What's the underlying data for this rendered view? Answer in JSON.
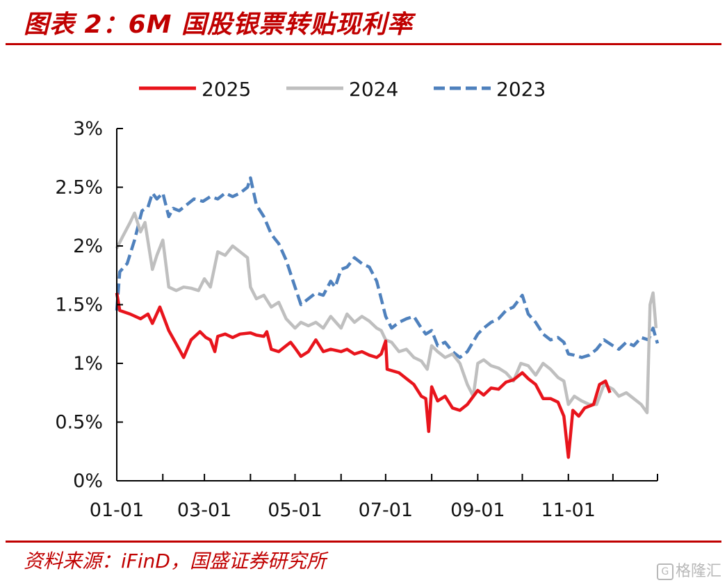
{
  "header": {
    "title": "图表 2：6M 国股银票转贴现利率"
  },
  "footer": {
    "source": "资料来源：iFinD，国盛证券研究所",
    "watermark": "格隆汇",
    "watermark_icon": "G"
  },
  "colors": {
    "title": "#c00000",
    "s2025": "#e8141c",
    "s2024": "#bfbfbf",
    "s2023": "#4f81bd"
  },
  "chart_data": {
    "type": "line",
    "title": "6M 国股银票转贴现利率",
    "x_ticks": [
      "01-01",
      "03-01",
      "05-01",
      "07-01",
      "09-01",
      "11-01"
    ],
    "y_ticks": [
      "0%",
      "0.5%",
      "1%",
      "1.5%",
      "2%",
      "2.5%",
      "3%"
    ],
    "ylim": [
      0,
      3
    ],
    "y_unit": "%",
    "legend_position": "top",
    "grid": false,
    "series": [
      {
        "name": "2025",
        "style": "solid",
        "points": [
          [
            "01-01",
            1.6
          ],
          [
            "01-03",
            1.45
          ],
          [
            "01-10",
            1.42
          ],
          [
            "01-17",
            1.38
          ],
          [
            "01-22",
            1.42
          ],
          [
            "01-25",
            1.34
          ],
          [
            "01-30",
            1.48
          ],
          [
            "02-05",
            1.28
          ],
          [
            "02-12",
            1.12
          ],
          [
            "02-15",
            1.05
          ],
          [
            "02-20",
            1.2
          ],
          [
            "02-26",
            1.27
          ],
          [
            "03-02",
            1.22
          ],
          [
            "03-05",
            1.2
          ],
          [
            "03-08",
            1.1
          ],
          [
            "03-10",
            1.23
          ],
          [
            "03-15",
            1.25
          ],
          [
            "03-20",
            1.22
          ],
          [
            "03-25",
            1.25
          ],
          [
            "04-01",
            1.26
          ],
          [
            "04-05",
            1.24
          ],
          [
            "04-10",
            1.23
          ],
          [
            "04-12",
            1.27
          ],
          [
            "04-15",
            1.12
          ],
          [
            "04-20",
            1.1
          ],
          [
            "04-25",
            1.15
          ],
          [
            "04-28",
            1.18
          ],
          [
            "05-01",
            1.13
          ],
          [
            "05-05",
            1.06
          ],
          [
            "05-10",
            1.1
          ],
          [
            "05-15",
            1.2
          ],
          [
            "05-20",
            1.1
          ],
          [
            "05-25",
            1.12
          ],
          [
            "06-01",
            1.1
          ],
          [
            "06-05",
            1.12
          ],
          [
            "06-10",
            1.08
          ],
          [
            "06-15",
            1.1
          ],
          [
            "06-20",
            1.07
          ],
          [
            "06-25",
            1.05
          ],
          [
            "06-28",
            1.08
          ],
          [
            "07-01",
            1.19
          ],
          [
            "07-02",
            0.95
          ],
          [
            "07-10",
            0.92
          ],
          [
            "07-15",
            0.87
          ],
          [
            "07-20",
            0.82
          ],
          [
            "07-25",
            0.72
          ],
          [
            "07-28",
            0.7
          ],
          [
            "07-30",
            0.42
          ],
          [
            "08-01",
            0.8
          ],
          [
            "08-05",
            0.68
          ],
          [
            "08-10",
            0.72
          ],
          [
            "08-15",
            0.62
          ],
          [
            "08-20",
            0.6
          ],
          [
            "08-25",
            0.65
          ],
          [
            "09-01",
            0.77
          ],
          [
            "09-05",
            0.73
          ],
          [
            "09-10",
            0.79
          ],
          [
            "09-15",
            0.78
          ],
          [
            "09-20",
            0.84
          ],
          [
            "09-25",
            0.86
          ],
          [
            "10-01",
            0.92
          ],
          [
            "10-05",
            0.87
          ],
          [
            "10-10",
            0.82
          ],
          [
            "10-15",
            0.7
          ],
          [
            "10-20",
            0.7
          ],
          [
            "10-25",
            0.67
          ],
          [
            "10-29",
            0.55
          ],
          [
            "11-01",
            0.2
          ],
          [
            "11-04",
            0.6
          ],
          [
            "11-08",
            0.55
          ],
          [
            "11-12",
            0.62
          ],
          [
            "11-18",
            0.65
          ],
          [
            "11-22",
            0.82
          ],
          [
            "11-26",
            0.85
          ],
          [
            "11-29",
            0.75
          ]
        ]
      },
      {
        "name": "2024",
        "style": "solid",
        "points": [
          [
            "01-01",
            1.98
          ],
          [
            "01-05",
            2.08
          ],
          [
            "01-10",
            2.2
          ],
          [
            "01-13",
            2.28
          ],
          [
            "01-17",
            2.12
          ],
          [
            "01-20",
            2.2
          ],
          [
            "01-25",
            1.8
          ],
          [
            "01-28",
            1.92
          ],
          [
            "02-01",
            2.05
          ],
          [
            "02-05",
            1.65
          ],
          [
            "02-10",
            1.62
          ],
          [
            "02-15",
            1.65
          ],
          [
            "02-20",
            1.64
          ],
          [
            "02-25",
            1.62
          ],
          [
            "03-01",
            1.72
          ],
          [
            "03-05",
            1.65
          ],
          [
            "03-10",
            1.95
          ],
          [
            "03-15",
            1.92
          ],
          [
            "03-20",
            2.0
          ],
          [
            "03-25",
            1.95
          ],
          [
            "03-30",
            1.9
          ],
          [
            "04-01",
            1.65
          ],
          [
            "04-05",
            1.55
          ],
          [
            "04-10",
            1.58
          ],
          [
            "04-15",
            1.48
          ],
          [
            "04-20",
            1.52
          ],
          [
            "04-25",
            1.38
          ],
          [
            "05-01",
            1.3
          ],
          [
            "05-05",
            1.35
          ],
          [
            "05-10",
            1.32
          ],
          [
            "05-15",
            1.35
          ],
          [
            "05-20",
            1.3
          ],
          [
            "05-25",
            1.4
          ],
          [
            "06-01",
            1.3
          ],
          [
            "06-05",
            1.42
          ],
          [
            "06-10",
            1.35
          ],
          [
            "06-15",
            1.4
          ],
          [
            "06-20",
            1.36
          ],
          [
            "06-25",
            1.3
          ],
          [
            "06-28",
            1.28
          ],
          [
            "07-01",
            1.2
          ],
          [
            "07-05",
            1.18
          ],
          [
            "07-10",
            1.1
          ],
          [
            "07-15",
            1.12
          ],
          [
            "07-20",
            1.05
          ],
          [
            "07-25",
            1.02
          ],
          [
            "07-29",
            0.95
          ],
          [
            "08-01",
            1.15
          ],
          [
            "08-05",
            1.1
          ],
          [
            "08-10",
            1.05
          ],
          [
            "08-15",
            1.08
          ],
          [
            "08-20",
            1.0
          ],
          [
            "08-25",
            0.82
          ],
          [
            "08-29",
            0.72
          ],
          [
            "09-01",
            1.0
          ],
          [
            "09-05",
            1.03
          ],
          [
            "09-10",
            0.98
          ],
          [
            "09-15",
            0.96
          ],
          [
            "09-20",
            0.92
          ],
          [
            "09-25",
            0.85
          ],
          [
            "09-30",
            1.0
          ],
          [
            "10-05",
            0.98
          ],
          [
            "10-10",
            0.9
          ],
          [
            "10-15",
            1.0
          ],
          [
            "10-20",
            0.95
          ],
          [
            "10-25",
            0.88
          ],
          [
            "10-29",
            0.85
          ],
          [
            "11-01",
            0.65
          ],
          [
            "11-05",
            0.72
          ],
          [
            "11-10",
            0.68
          ],
          [
            "11-15",
            0.65
          ],
          [
            "11-20",
            0.65
          ],
          [
            "11-25",
            0.82
          ],
          [
            "12-01",
            0.78
          ],
          [
            "12-05",
            0.72
          ],
          [
            "12-10",
            0.75
          ],
          [
            "12-15",
            0.7
          ],
          [
            "12-20",
            0.65
          ],
          [
            "12-24",
            0.58
          ],
          [
            "12-26",
            1.5
          ],
          [
            "12-28",
            1.6
          ],
          [
            "12-30",
            1.3
          ]
        ]
      },
      {
        "name": "2023",
        "style": "dashed",
        "points": [
          [
            "01-01",
            1.45
          ],
          [
            "01-03",
            1.78
          ],
          [
            "01-08",
            1.85
          ],
          [
            "01-13",
            2.05
          ],
          [
            "01-18",
            2.3
          ],
          [
            "01-22",
            2.33
          ],
          [
            "01-25",
            2.45
          ],
          [
            "01-28",
            2.4
          ],
          [
            "02-01",
            2.45
          ],
          [
            "02-05",
            2.25
          ],
          [
            "02-08",
            2.32
          ],
          [
            "02-12",
            2.3
          ],
          [
            "02-17",
            2.35
          ],
          [
            "02-22",
            2.4
          ],
          [
            "02-28",
            2.38
          ],
          [
            "03-05",
            2.42
          ],
          [
            "03-10",
            2.4
          ],
          [
            "03-15",
            2.45
          ],
          [
            "03-20",
            2.42
          ],
          [
            "03-25",
            2.45
          ],
          [
            "03-30",
            2.5
          ],
          [
            "04-01",
            2.58
          ],
          [
            "04-05",
            2.35
          ],
          [
            "04-10",
            2.25
          ],
          [
            "04-15",
            2.1
          ],
          [
            "04-20",
            2.02
          ],
          [
            "04-25",
            1.88
          ],
          [
            "05-01",
            1.65
          ],
          [
            "05-05",
            1.5
          ],
          [
            "05-10",
            1.55
          ],
          [
            "05-15",
            1.6
          ],
          [
            "05-20",
            1.58
          ],
          [
            "05-25",
            1.7
          ],
          [
            "05-28",
            1.65
          ],
          [
            "06-01",
            1.8
          ],
          [
            "06-05",
            1.82
          ],
          [
            "06-10",
            1.9
          ],
          [
            "06-15",
            1.85
          ],
          [
            "06-20",
            1.82
          ],
          [
            "06-25",
            1.7
          ],
          [
            "06-28",
            1.55
          ],
          [
            "07-01",
            1.4
          ],
          [
            "07-05",
            1.3
          ],
          [
            "07-10",
            1.35
          ],
          [
            "07-15",
            1.38
          ],
          [
            "07-20",
            1.4
          ],
          [
            "07-25",
            1.3
          ],
          [
            "07-28",
            1.25
          ],
          [
            "08-01",
            1.28
          ],
          [
            "08-05",
            1.15
          ],
          [
            "08-10",
            1.18
          ],
          [
            "08-15",
            1.1
          ],
          [
            "08-20",
            1.05
          ],
          [
            "08-25",
            1.1
          ],
          [
            "09-01",
            1.25
          ],
          [
            "09-05",
            1.3
          ],
          [
            "09-10",
            1.35
          ],
          [
            "09-15",
            1.38
          ],
          [
            "09-20",
            1.45
          ],
          [
            "09-25",
            1.48
          ],
          [
            "10-01",
            1.58
          ],
          [
            "10-05",
            1.42
          ],
          [
            "10-10",
            1.35
          ],
          [
            "10-15",
            1.25
          ],
          [
            "10-20",
            1.2
          ],
          [
            "10-25",
            1.22
          ],
          [
            "10-29",
            1.18
          ],
          [
            "11-01",
            1.08
          ],
          [
            "11-05",
            1.07
          ],
          [
            "11-10",
            1.05
          ],
          [
            "11-15",
            1.07
          ],
          [
            "11-20",
            1.12
          ],
          [
            "11-25",
            1.2
          ],
          [
            "12-01",
            1.15
          ],
          [
            "12-05",
            1.12
          ],
          [
            "12-10",
            1.18
          ],
          [
            "12-15",
            1.15
          ],
          [
            "12-20",
            1.22
          ],
          [
            "12-25",
            1.2
          ],
          [
            "12-28",
            1.3
          ],
          [
            "12-31",
            1.17
          ]
        ]
      }
    ]
  }
}
